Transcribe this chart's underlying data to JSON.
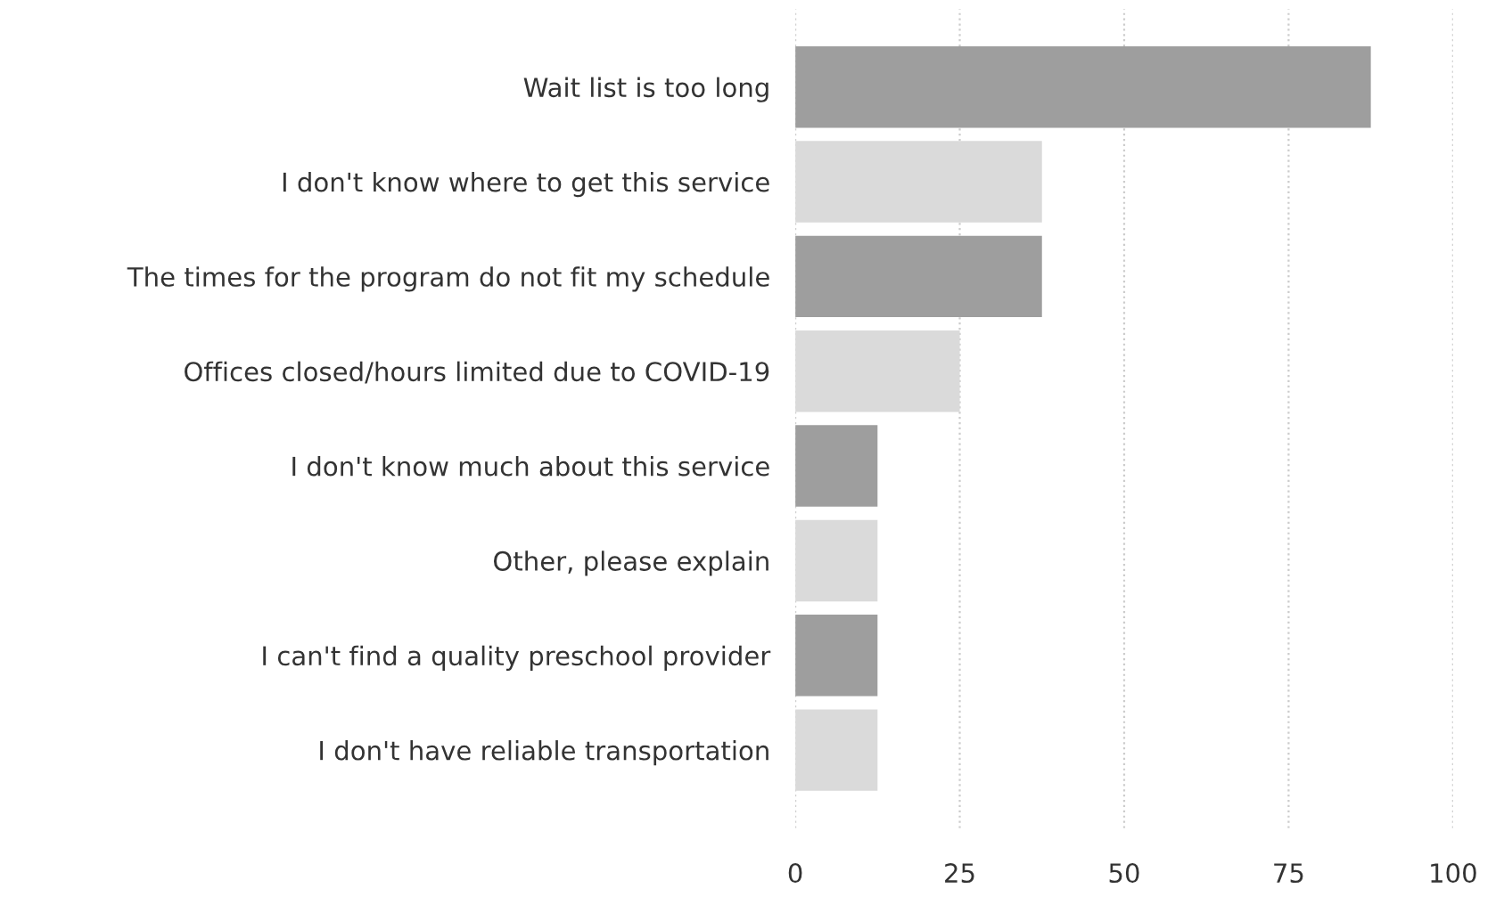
{
  "chart_data": {
    "type": "bar",
    "orientation": "horizontal",
    "categories": [
      "Wait list is too long",
      "I don't know where to get this service",
      "The times for the program do not fit my schedule",
      "Offices closed/hours limited due to COVID-19",
      "I don't know much about this service",
      "Other, please explain",
      "I can't find a quality preschool provider",
      "I don't have reliable transportation"
    ],
    "values": [
      87.5,
      37.5,
      37.5,
      25,
      12.5,
      12.5,
      12.5,
      12.5
    ],
    "colors": [
      "#9e9e9e",
      "#dadada",
      "#9e9e9e",
      "#dadada",
      "#9e9e9e",
      "#dadada",
      "#9e9e9e",
      "#dadada"
    ],
    "xlim": [
      0,
      100
    ],
    "xticks": [
      0,
      25,
      50,
      75,
      100
    ],
    "grid": "x"
  }
}
